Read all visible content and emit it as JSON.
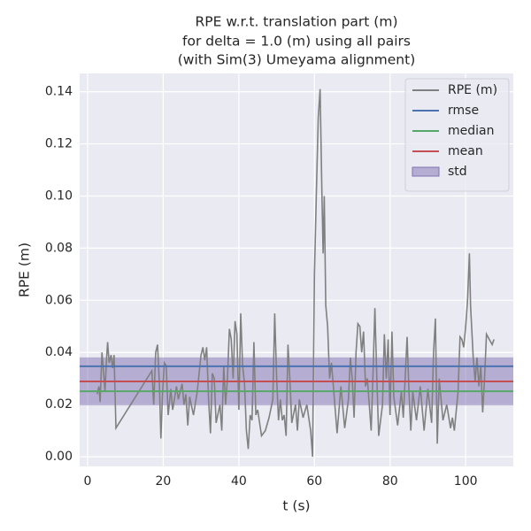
{
  "chart_data": {
    "type": "line",
    "title": [
      "RPE w.r.t. translation part (m)",
      "for delta = 1.0 (m) using all pairs",
      "(with Sim(3) Umeyama alignment)"
    ],
    "xlabel": "t (s)",
    "ylabel": "RPE (m)",
    "xlim": [
      -2.1,
      112.6
    ],
    "ylim": [
      -0.0037,
      0.147
    ],
    "xticks": [
      0,
      20,
      40,
      60,
      80,
      100
    ],
    "yticks": [
      {
        "value": 0,
        "label": "0.00"
      },
      0.02,
      0.04,
      0.06,
      0.08,
      {
        "value": 0.1,
        "label": "0.10"
      },
      0.12,
      0.14
    ],
    "grid": true,
    "legend": "upper right",
    "series": [
      {
        "name": "RPE (m)",
        "color": "#808080",
        "x": [
          2.5,
          3,
          3.3,
          3.8,
          4.2,
          4.6,
          5,
          5.3,
          5.7,
          6.2,
          6.6,
          7,
          7.5,
          17,
          17.5,
          18,
          18.5,
          19,
          19.4,
          19.8,
          20.3,
          20.8,
          21.3,
          22,
          22.5,
          23.5,
          24,
          25,
          25.5,
          26,
          26.5,
          27,
          28,
          29,
          30,
          30.5,
          31,
          31.5,
          32,
          32.5,
          33,
          33.5,
          34,
          35,
          35.5,
          36,
          36.5,
          37,
          37.5,
          38,
          38.5,
          39,
          39.5,
          40,
          40.5,
          41,
          41.5,
          42,
          42.5,
          43,
          43.5,
          44,
          44.5,
          45,
          46,
          47,
          48,
          49,
          49.5,
          50,
          50.5,
          51,
          51.5,
          52,
          52.5,
          53,
          53.5,
          54,
          55,
          55.5,
          56,
          57,
          58,
          59,
          59.5,
          60,
          60.5,
          61,
          61.5,
          62,
          62.3,
          62.6,
          63,
          63.5,
          64,
          64.5,
          65,
          66,
          67,
          68,
          69,
          69.5,
          70,
          70.5,
          71,
          71.5,
          72,
          72.5,
          73,
          73.5,
          74,
          75,
          75.5,
          76,
          76.5,
          77,
          78,
          78.5,
          79,
          79.5,
          80,
          80.5,
          81,
          82,
          83,
          83.5,
          84,
          84.5,
          85,
          85.5,
          86,
          87,
          88,
          89,
          90,
          91,
          91.5,
          92,
          92.5,
          93,
          94,
          95,
          96,
          96.5,
          97,
          98,
          98.5,
          99,
          99.5,
          100,
          100.5,
          101,
          101.3,
          102,
          102.5,
          103,
          103.5,
          104,
          104.5,
          105,
          105.5,
          107,
          107.5
        ],
        "values": [
          0.024,
          0.027,
          0.021,
          0.04,
          0.033,
          0.025,
          0.037,
          0.044,
          0.036,
          0.039,
          0.034,
          0.039,
          0.011,
          0.033,
          0.02,
          0.04,
          0.043,
          0.028,
          0.007,
          0.024,
          0.036,
          0.035,
          0.016,
          0.026,
          0.018,
          0.027,
          0.022,
          0.028,
          0.02,
          0.024,
          0.012,
          0.023,
          0.016,
          0.025,
          0.039,
          0.042,
          0.037,
          0.042,
          0.022,
          0.009,
          0.032,
          0.03,
          0.013,
          0.02,
          0.01,
          0.035,
          0.02,
          0.03,
          0.049,
          0.045,
          0.03,
          0.052,
          0.047,
          0.018,
          0.055,
          0.035,
          0.028,
          0.01,
          0.003,
          0.016,
          0.014,
          0.044,
          0.016,
          0.018,
          0.008,
          0.01,
          0.015,
          0.022,
          0.055,
          0.03,
          0.014,
          0.022,
          0.014,
          0.016,
          0.008,
          0.043,
          0.03,
          0.013,
          0.02,
          0.01,
          0.022,
          0.015,
          0.02,
          0.01,
          0.0,
          0.07,
          0.1,
          0.13,
          0.141,
          0.1,
          0.078,
          0.1,
          0.058,
          0.05,
          0.03,
          0.036,
          0.027,
          0.009,
          0.027,
          0.011,
          0.022,
          0.038,
          0.03,
          0.015,
          0.04,
          0.051,
          0.05,
          0.04,
          0.048,
          0.027,
          0.03,
          0.01,
          0.032,
          0.057,
          0.03,
          0.008,
          0.02,
          0.047,
          0.03,
          0.045,
          0.016,
          0.048,
          0.023,
          0.012,
          0.025,
          0.015,
          0.03,
          0.046,
          0.025,
          0.01,
          0.025,
          0.014,
          0.027,
          0.01,
          0.026,
          0.013,
          0.04,
          0.053,
          0.005,
          0.03,
          0.014,
          0.02,
          0.011,
          0.015,
          0.01,
          0.025,
          0.046,
          0.045,
          0.042,
          0.05,
          0.06,
          0.078,
          0.058,
          0.038,
          0.029,
          0.038,
          0.027,
          0.035,
          0.017,
          0.03,
          0.047,
          0.043,
          0.045
        ]
      },
      {
        "name": "rmse",
        "color": "#4c72b0",
        "value": 0.0347
      },
      {
        "name": "median",
        "color": "#55a868",
        "value": 0.0251
      },
      {
        "name": "mean",
        "color": "#c44e52",
        "value": 0.0289
      },
      {
        "name": "std",
        "color": "#8172b2",
        "value": 0.0092
      }
    ]
  }
}
